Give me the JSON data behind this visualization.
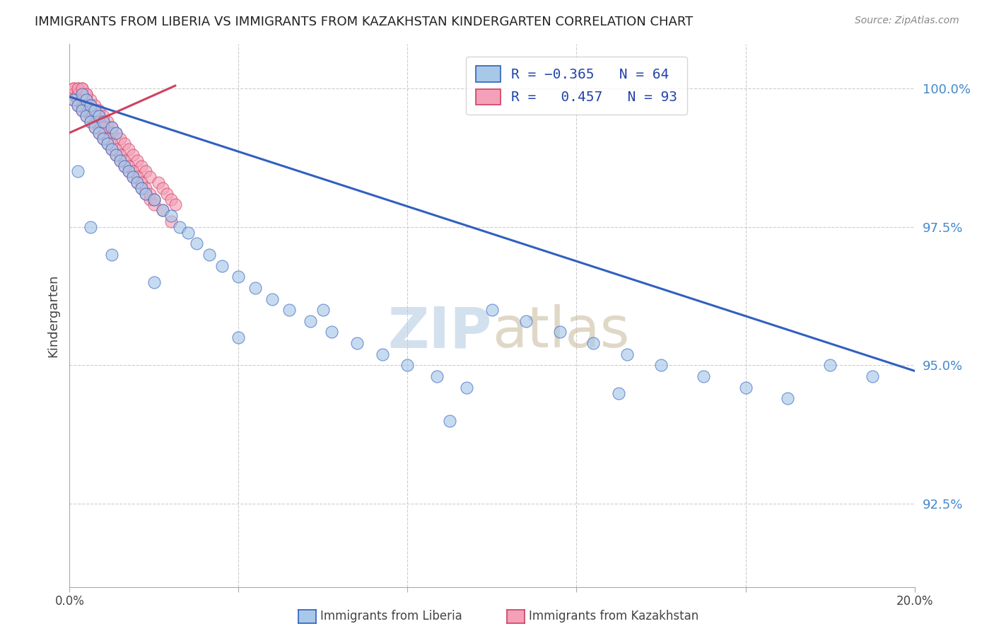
{
  "title": "IMMIGRANTS FROM LIBERIA VS IMMIGRANTS FROM KAZAKHSTAN KINDERGARTEN CORRELATION CHART",
  "source": "Source: ZipAtlas.com",
  "ylabel": "Kindergarten",
  "ytick_labels": [
    "92.5%",
    "95.0%",
    "97.5%",
    "100.0%"
  ],
  "ytick_values": [
    0.925,
    0.95,
    0.975,
    1.0
  ],
  "xlim": [
    0.0,
    0.2
  ],
  "ylim": [
    0.91,
    1.008
  ],
  "liberia_color": "#a8c8e8",
  "kazakhstan_color": "#f4a0b8",
  "liberia_line_color": "#3060c0",
  "kazakhstan_line_color": "#d04060",
  "liberia_R": -0.365,
  "liberia_N": 64,
  "kazakhstan_R": 0.457,
  "kazakhstan_N": 93,
  "grid_color": "#cccccc",
  "watermark_zip_color": "#b0c8e0",
  "watermark_atlas_color": "#c8b89a",
  "legend_label_color": "#2244aa",
  "right_tick_color": "#4488cc",
  "liberia_scatter_x": [
    0.001,
    0.002,
    0.003,
    0.003,
    0.004,
    0.004,
    0.005,
    0.005,
    0.006,
    0.006,
    0.007,
    0.007,
    0.008,
    0.008,
    0.009,
    0.01,
    0.01,
    0.011,
    0.011,
    0.012,
    0.013,
    0.014,
    0.015,
    0.016,
    0.017,
    0.018,
    0.02,
    0.022,
    0.024,
    0.026,
    0.028,
    0.03,
    0.033,
    0.036,
    0.04,
    0.044,
    0.048,
    0.052,
    0.057,
    0.062,
    0.068,
    0.074,
    0.08,
    0.087,
    0.094,
    0.1,
    0.108,
    0.116,
    0.124,
    0.132,
    0.14,
    0.15,
    0.16,
    0.17,
    0.18,
    0.19,
    0.002,
    0.005,
    0.01,
    0.02,
    0.04,
    0.06,
    0.09,
    0.13
  ],
  "liberia_scatter_y": [
    0.998,
    0.997,
    0.996,
    0.999,
    0.995,
    0.998,
    0.994,
    0.997,
    0.993,
    0.996,
    0.992,
    0.995,
    0.991,
    0.994,
    0.99,
    0.989,
    0.993,
    0.988,
    0.992,
    0.987,
    0.986,
    0.985,
    0.984,
    0.983,
    0.982,
    0.981,
    0.98,
    0.978,
    0.977,
    0.975,
    0.974,
    0.972,
    0.97,
    0.968,
    0.966,
    0.964,
    0.962,
    0.96,
    0.958,
    0.956,
    0.954,
    0.952,
    0.95,
    0.948,
    0.946,
    0.96,
    0.958,
    0.956,
    0.954,
    0.952,
    0.95,
    0.948,
    0.946,
    0.944,
    0.95,
    0.948,
    0.985,
    0.975,
    0.97,
    0.965,
    0.955,
    0.96,
    0.94,
    0.945
  ],
  "kazakhstan_scatter_x": [
    0.001,
    0.001,
    0.001,
    0.002,
    0.002,
    0.002,
    0.002,
    0.003,
    0.003,
    0.003,
    0.003,
    0.003,
    0.004,
    0.004,
    0.004,
    0.004,
    0.005,
    0.005,
    0.005,
    0.005,
    0.006,
    0.006,
    0.006,
    0.006,
    0.007,
    0.007,
    0.007,
    0.008,
    0.008,
    0.008,
    0.009,
    0.009,
    0.009,
    0.01,
    0.01,
    0.01,
    0.011,
    0.011,
    0.012,
    0.012,
    0.013,
    0.013,
    0.014,
    0.014,
    0.015,
    0.015,
    0.016,
    0.016,
    0.017,
    0.017,
    0.018,
    0.018,
    0.019,
    0.019,
    0.02,
    0.021,
    0.022,
    0.023,
    0.024,
    0.025,
    0.001,
    0.001,
    0.002,
    0.002,
    0.003,
    0.003,
    0.004,
    0.004,
    0.005,
    0.005,
    0.006,
    0.006,
    0.007,
    0.007,
    0.008,
    0.008,
    0.009,
    0.01,
    0.011,
    0.012,
    0.013,
    0.014,
    0.015,
    0.016,
    0.017,
    0.018,
    0.019,
    0.02,
    0.022,
    0.024,
    0.002,
    0.003,
    0.004
  ],
  "kazakhstan_scatter_y": [
    0.998,
    1.0,
    0.999,
    0.997,
    1.0,
    0.999,
    0.998,
    0.996,
    1.0,
    0.999,
    0.998,
    0.997,
    0.995,
    0.999,
    0.998,
    0.997,
    0.994,
    0.998,
    0.997,
    0.996,
    0.993,
    0.997,
    0.996,
    0.995,
    0.992,
    0.996,
    0.995,
    0.991,
    0.995,
    0.994,
    0.99,
    0.994,
    0.993,
    0.989,
    0.993,
    0.992,
    0.988,
    0.992,
    0.987,
    0.991,
    0.986,
    0.99,
    0.985,
    0.989,
    0.984,
    0.988,
    0.983,
    0.987,
    0.982,
    0.986,
    0.981,
    0.985,
    0.98,
    0.984,
    0.979,
    0.983,
    0.982,
    0.981,
    0.98,
    0.979,
    0.999,
    1.0,
    0.998,
    0.999,
    0.997,
    0.998,
    0.996,
    0.997,
    0.995,
    0.996,
    0.994,
    0.995,
    0.993,
    0.994,
    0.992,
    0.993,
    0.991,
    0.99,
    0.989,
    0.988,
    0.987,
    0.986,
    0.985,
    0.984,
    0.983,
    0.982,
    0.981,
    0.98,
    0.978,
    0.976,
    1.0,
    1.0,
    0.999
  ],
  "liberia_line_x": [
    0.0,
    0.2
  ],
  "liberia_line_y": [
    0.9985,
    0.949
  ],
  "kazakhstan_line_x": [
    0.0,
    0.025
  ],
  "kazakhstan_line_y": [
    0.992,
    1.0005
  ]
}
